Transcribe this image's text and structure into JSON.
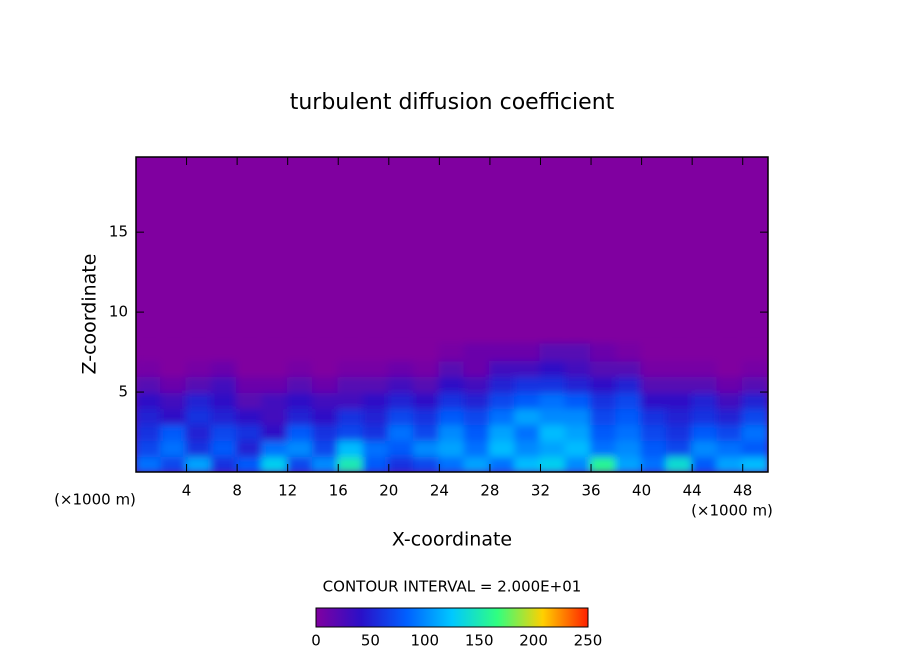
{
  "chart_data": {
    "type": "contour",
    "title": "turbulent diffusion coefficient",
    "x_label": "X-coordinate",
    "y_label": "Z-coordinate",
    "x_unit_label": "(×1000 m)",
    "y_unit_label": "(×1000 m)",
    "contour_interval_label": "CONTOUR INTERVAL = 2.000E+01",
    "xlim": [
      0,
      50
    ],
    "xticks": [
      4,
      8,
      12,
      16,
      20,
      24,
      28,
      32,
      36,
      40,
      44,
      48
    ],
    "ylim": [
      0,
      19.7
    ],
    "yticks": [
      5,
      10,
      15
    ],
    "zlim": [
      0,
      250
    ],
    "zticks": [
      0,
      50,
      100,
      150,
      200,
      250
    ],
    "colors": [
      "#8000a0",
      "#2a10c8",
      "#0060ff",
      "#00c8ff",
      "#30ff80",
      "#ffd000",
      "#ff2000"
    ],
    "x": [
      1,
      3,
      5,
      7,
      9,
      11,
      13,
      15,
      17,
      19,
      21,
      23,
      25,
      27,
      29,
      31,
      33,
      35,
      37,
      39,
      41,
      43,
      45,
      47,
      49
    ],
    "y": [
      0.5,
      1.5,
      2.5,
      3.5,
      4.5,
      5.5,
      6.5,
      7.5
    ],
    "z": [
      [
        90,
        70,
        110,
        60,
        80,
        130,
        70,
        100,
        150,
        80,
        60,
        70,
        90,
        110,
        90,
        120,
        130,
        100,
        160,
        110,
        90,
        140,
        80,
        110,
        120
      ],
      [
        70,
        90,
        60,
        80,
        50,
        90,
        100,
        70,
        120,
        90,
        80,
        100,
        110,
        90,
        120,
        100,
        110,
        120,
        90,
        100,
        80,
        70,
        100,
        90,
        80
      ],
      [
        60,
        80,
        50,
        70,
        60,
        40,
        80,
        60,
        70,
        60,
        90,
        70,
        100,
        80,
        110,
        90,
        120,
        110,
        80,
        90,
        70,
        60,
        80,
        70,
        90
      ],
      [
        50,
        40,
        60,
        50,
        40,
        30,
        50,
        40,
        60,
        50,
        70,
        60,
        80,
        70,
        90,
        110,
        100,
        100,
        70,
        80,
        60,
        50,
        60,
        50,
        70
      ],
      [
        40,
        30,
        50,
        40,
        20,
        30,
        40,
        30,
        30,
        40,
        50,
        40,
        60,
        50,
        70,
        80,
        90,
        80,
        60,
        70,
        40,
        40,
        50,
        30,
        50
      ],
      [
        20,
        10,
        20,
        30,
        10,
        10,
        20,
        10,
        20,
        20,
        30,
        20,
        40,
        30,
        50,
        60,
        60,
        50,
        40,
        50,
        20,
        20,
        20,
        10,
        20
      ],
      [
        5,
        0,
        5,
        10,
        0,
        0,
        5,
        0,
        5,
        5,
        10,
        5,
        20,
        10,
        30,
        30,
        40,
        30,
        20,
        20,
        5,
        5,
        5,
        0,
        5
      ],
      [
        0,
        0,
        0,
        0,
        0,
        0,
        0,
        0,
        0,
        0,
        0,
        0,
        5,
        10,
        10,
        10,
        20,
        20,
        10,
        5,
        0,
        0,
        0,
        0,
        0
      ]
    ]
  }
}
